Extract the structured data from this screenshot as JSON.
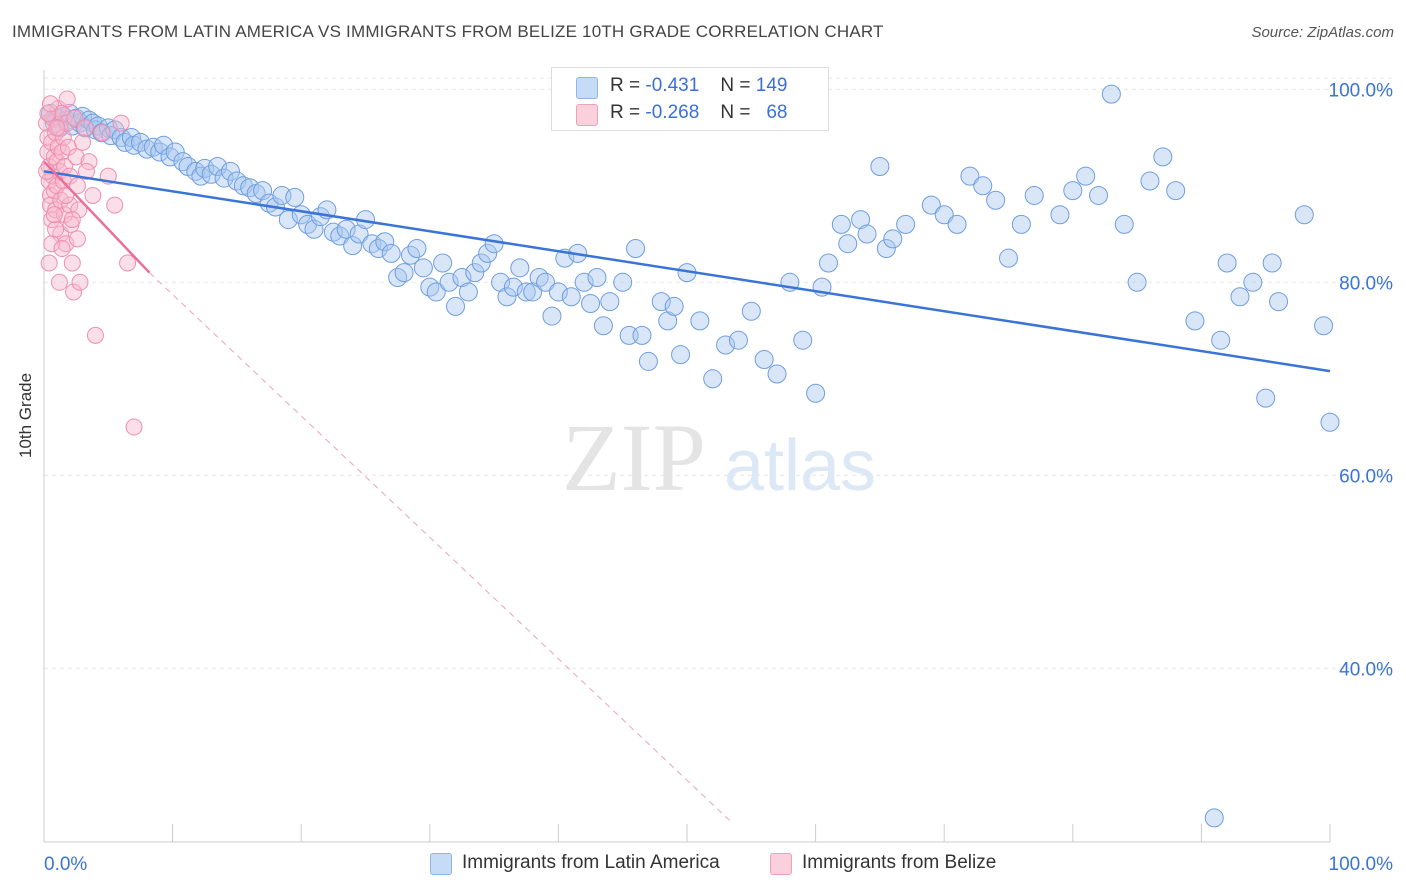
{
  "title": "IMMIGRANTS FROM LATIN AMERICA VS IMMIGRANTS FROM BELIZE 10TH GRADE CORRELATION CHART",
  "source": "Source: ZipAtlas.com",
  "watermark": {
    "zip": "ZIP",
    "atlas": "atlas"
  },
  "legend": {
    "rows": [
      {
        "r_label": "R =",
        "r_value": "-0.431",
        "n_label": "N =",
        "n_value": "149",
        "color": "#a8c8f0"
      },
      {
        "r_label": "R =",
        "r_value": "-0.268",
        "n_label": "N =",
        "n_value": "68",
        "color": "#f7b8cc"
      }
    ]
  },
  "bottom_legend": [
    {
      "label": "Immigrants from Latin America",
      "color": "#a8c8f0"
    },
    {
      "label": "Immigrants from Belize",
      "color": "#f7b8cc"
    }
  ],
  "chart_data": {
    "type": "scatter",
    "ylabel": "10th Grade",
    "xlabel": "",
    "x_tick_labels": [
      "0.0%",
      "100.0%"
    ],
    "y_tick_labels": [
      "100.0%",
      "80.0%",
      "60.0%",
      "40.0%"
    ],
    "y_tick_values": [
      100,
      80,
      60,
      40
    ],
    "xlim": [
      0,
      100
    ],
    "ylim": [
      22,
      102
    ],
    "grid": true,
    "colors": {
      "blue": "#3a74d6",
      "blue_fill": "#a8c8f0",
      "pink": "#e8709a",
      "pink_fill": "#f7b8cc",
      "tick_color": "#3a74d6"
    },
    "series": [
      {
        "name": "Immigrants from Latin America",
        "trend": {
          "x": [
            0,
            100
          ],
          "y": [
            91.5,
            70.8
          ]
        },
        "points": [
          [
            0.5,
            97.5
          ],
          [
            0.8,
            96.5
          ],
          [
            1.0,
            97.0
          ],
          [
            1.2,
            96.0
          ],
          [
            1.5,
            97.2
          ],
          [
            1.8,
            96.8
          ],
          [
            2.0,
            97.5
          ],
          [
            2.2,
            96.2
          ],
          [
            2.5,
            97.0
          ],
          [
            2.8,
            96.5
          ],
          [
            3.0,
            97.2
          ],
          [
            3.2,
            96.0
          ],
          [
            3.5,
            96.8
          ],
          [
            3.8,
            96.5
          ],
          [
            4.0,
            95.8
          ],
          [
            4.2,
            96.2
          ],
          [
            4.5,
            95.5
          ],
          [
            5.0,
            96.0
          ],
          [
            5.2,
            95.2
          ],
          [
            5.5,
            95.8
          ],
          [
            6.0,
            95.0
          ],
          [
            6.3,
            94.5
          ],
          [
            6.8,
            95.0
          ],
          [
            7.0,
            94.2
          ],
          [
            7.5,
            94.5
          ],
          [
            8.0,
            93.8
          ],
          [
            8.5,
            94.0
          ],
          [
            9.0,
            93.5
          ],
          [
            9.3,
            94.2
          ],
          [
            9.8,
            93.0
          ],
          [
            10.2,
            93.5
          ],
          [
            10.8,
            92.5
          ],
          [
            11.2,
            92.0
          ],
          [
            11.8,
            91.5
          ],
          [
            12.2,
            91.0
          ],
          [
            12.5,
            91.8
          ],
          [
            13.0,
            91.2
          ],
          [
            13.5,
            92.0
          ],
          [
            14.0,
            90.8
          ],
          [
            14.5,
            91.5
          ],
          [
            15.0,
            90.5
          ],
          [
            15.5,
            90.0
          ],
          [
            16.0,
            89.8
          ],
          [
            16.5,
            89.2
          ],
          [
            17.0,
            89.5
          ],
          [
            17.5,
            88.2
          ],
          [
            18.0,
            87.8
          ],
          [
            18.5,
            89.0
          ],
          [
            19.0,
            86.5
          ],
          [
            19.5,
            88.8
          ],
          [
            20.0,
            87.0
          ],
          [
            20.5,
            86.0
          ],
          [
            21.0,
            85.5
          ],
          [
            21.5,
            86.8
          ],
          [
            22.0,
            87.5
          ],
          [
            22.5,
            85.2
          ],
          [
            23.0,
            84.8
          ],
          [
            23.5,
            85.5
          ],
          [
            24.0,
            83.8
          ],
          [
            24.5,
            85.0
          ],
          [
            25.0,
            86.5
          ],
          [
            25.5,
            84.0
          ],
          [
            26.0,
            83.5
          ],
          [
            26.5,
            84.2
          ],
          [
            27.0,
            83.0
          ],
          [
            27.5,
            80.5
          ],
          [
            28.0,
            81.0
          ],
          [
            28.5,
            82.8
          ],
          [
            29.0,
            83.5
          ],
          [
            29.5,
            81.5
          ],
          [
            30.0,
            79.5
          ],
          [
            30.5,
            79.0
          ],
          [
            31.0,
            82.0
          ],
          [
            31.5,
            80.0
          ],
          [
            32.0,
            77.5
          ],
          [
            32.5,
            80.5
          ],
          [
            33.0,
            79.0
          ],
          [
            33.5,
            81.0
          ],
          [
            34.0,
            82.0
          ],
          [
            34.5,
            83.0
          ],
          [
            35.0,
            84.0
          ],
          [
            35.5,
            80.0
          ],
          [
            36.0,
            78.5
          ],
          [
            36.5,
            79.5
          ],
          [
            37.0,
            81.5
          ],
          [
            37.5,
            79.0
          ],
          [
            38.0,
            79.0
          ],
          [
            38.5,
            80.5
          ],
          [
            39.0,
            80.0
          ],
          [
            39.5,
            76.5
          ],
          [
            40.0,
            79.0
          ],
          [
            40.5,
            82.5
          ],
          [
            41.0,
            78.5
          ],
          [
            41.5,
            83.0
          ],
          [
            42.0,
            80.0
          ],
          [
            42.5,
            77.8
          ],
          [
            43.0,
            80.5
          ],
          [
            43.5,
            75.5
          ],
          [
            44.0,
            78.0
          ],
          [
            45.0,
            80.0
          ],
          [
            45.5,
            74.5
          ],
          [
            46.0,
            83.5
          ],
          [
            46.5,
            74.5
          ],
          [
            47.0,
            71.8
          ],
          [
            48.0,
            78.0
          ],
          [
            48.5,
            76.0
          ],
          [
            49.0,
            77.5
          ],
          [
            49.5,
            72.5
          ],
          [
            50.0,
            81.0
          ],
          [
            51.0,
            76.0
          ],
          [
            52.0,
            70.0
          ],
          [
            53.0,
            73.5
          ],
          [
            54.0,
            74.0
          ],
          [
            55.0,
            77.0
          ],
          [
            56.0,
            72.0
          ],
          [
            57.0,
            70.5
          ],
          [
            58.0,
            80.0
          ],
          [
            59.0,
            74.0
          ],
          [
            60.0,
            68.5
          ],
          [
            60.5,
            79.5
          ],
          [
            61.0,
            82.0
          ],
          [
            62.0,
            86.0
          ],
          [
            62.5,
            84.0
          ],
          [
            63.5,
            86.5
          ],
          [
            64.0,
            85.0
          ],
          [
            65.0,
            92.0
          ],
          [
            65.5,
            83.5
          ],
          [
            66.0,
            84.5
          ],
          [
            67.0,
            86.0
          ],
          [
            69.0,
            88.0
          ],
          [
            70.0,
            87.0
          ],
          [
            71.0,
            86.0
          ],
          [
            72.0,
            91.0
          ],
          [
            73.0,
            90.0
          ],
          [
            74.0,
            88.5
          ],
          [
            75.0,
            82.5
          ],
          [
            76.0,
            86.0
          ],
          [
            77.0,
            89.0
          ],
          [
            79.0,
            87.0
          ],
          [
            80.0,
            89.5
          ],
          [
            81.0,
            91.0
          ],
          [
            82.0,
            89.0
          ],
          [
            83.0,
            99.5
          ],
          [
            84.0,
            86.0
          ],
          [
            85.0,
            80.0
          ],
          [
            86.0,
            90.5
          ],
          [
            87.0,
            93.0
          ],
          [
            88.0,
            89.5
          ],
          [
            89.5,
            76.0
          ],
          [
            91.5,
            74.0
          ],
          [
            92.0,
            82.0
          ],
          [
            93.0,
            78.5
          ],
          [
            94.0,
            80.0
          ],
          [
            95.5,
            82.0
          ],
          [
            96.0,
            78.0
          ],
          [
            98.0,
            87.0
          ],
          [
            99.5,
            75.5
          ],
          [
            100.0,
            65.5
          ],
          [
            95.0,
            68.0
          ],
          [
            91.0,
            24.5
          ]
        ]
      },
      {
        "name": "Immigrants from Belize",
        "trend": {
          "x": [
            0,
            8.2
          ],
          "y": [
            92.5,
            81.0
          ]
        },
        "trend_ext": {
          "x": [
            8.2,
            53.5
          ],
          "y": [
            81.0,
            24.0
          ]
        },
        "points": [
          [
            0.2,
            96.5
          ],
          [
            0.3,
            95.0
          ],
          [
            0.3,
            93.5
          ],
          [
            0.4,
            92.0
          ],
          [
            0.4,
            90.5
          ],
          [
            0.5,
            89.0
          ],
          [
            0.5,
            88.0
          ],
          [
            0.6,
            86.5
          ],
          [
            0.6,
            94.5
          ],
          [
            0.7,
            97.0
          ],
          [
            0.7,
            91.0
          ],
          [
            0.8,
            93.0
          ],
          [
            0.8,
            89.5
          ],
          [
            0.9,
            95.5
          ],
          [
            0.9,
            87.5
          ],
          [
            1.0,
            92.5
          ],
          [
            1.0,
            90.0
          ],
          [
            1.1,
            98.0
          ],
          [
            1.1,
            94.0
          ],
          [
            1.2,
            96.0
          ],
          [
            1.2,
            91.5
          ],
          [
            1.3,
            88.5
          ],
          [
            1.3,
            85.0
          ],
          [
            1.4,
            97.5
          ],
          [
            1.4,
            93.5
          ],
          [
            1.5,
            95.0
          ],
          [
            1.5,
            90.5
          ],
          [
            1.6,
            92.0
          ],
          [
            1.6,
            87.0
          ],
          [
            1.7,
            84.0
          ],
          [
            1.8,
            99.0
          ],
          [
            1.8,
            96.5
          ],
          [
            1.9,
            94.0
          ],
          [
            2.0,
            91.0
          ],
          [
            2.0,
            88.0
          ],
          [
            2.1,
            86.0
          ],
          [
            2.2,
            82.0
          ],
          [
            2.3,
            79.0
          ],
          [
            2.4,
            97.0
          ],
          [
            2.5,
            93.0
          ],
          [
            2.6,
            90.0
          ],
          [
            2.7,
            87.5
          ],
          [
            2.8,
            80.0
          ],
          [
            3.0,
            94.5
          ],
          [
            3.2,
            96.0
          ],
          [
            3.5,
            92.5
          ],
          [
            3.8,
            89.0
          ],
          [
            4.0,
            74.5
          ],
          [
            4.5,
            95.5
          ],
          [
            5.0,
            91.0
          ],
          [
            5.5,
            88.0
          ],
          [
            6.0,
            96.5
          ],
          [
            6.5,
            82.0
          ],
          [
            7.0,
            65.0
          ],
          [
            0.4,
            82.0
          ],
          [
            0.6,
            84.0
          ],
          [
            0.9,
            85.5
          ],
          [
            1.2,
            80.0
          ],
          [
            0.3,
            97.5
          ],
          [
            0.5,
            98.5
          ],
          [
            1.0,
            96.0
          ],
          [
            1.7,
            89.0
          ],
          [
            2.2,
            86.5
          ],
          [
            0.8,
            87.0
          ],
          [
            0.2,
            91.5
          ],
          [
            1.4,
            83.5
          ],
          [
            2.6,
            84.5
          ],
          [
            3.3,
            91.5
          ]
        ]
      }
    ]
  }
}
